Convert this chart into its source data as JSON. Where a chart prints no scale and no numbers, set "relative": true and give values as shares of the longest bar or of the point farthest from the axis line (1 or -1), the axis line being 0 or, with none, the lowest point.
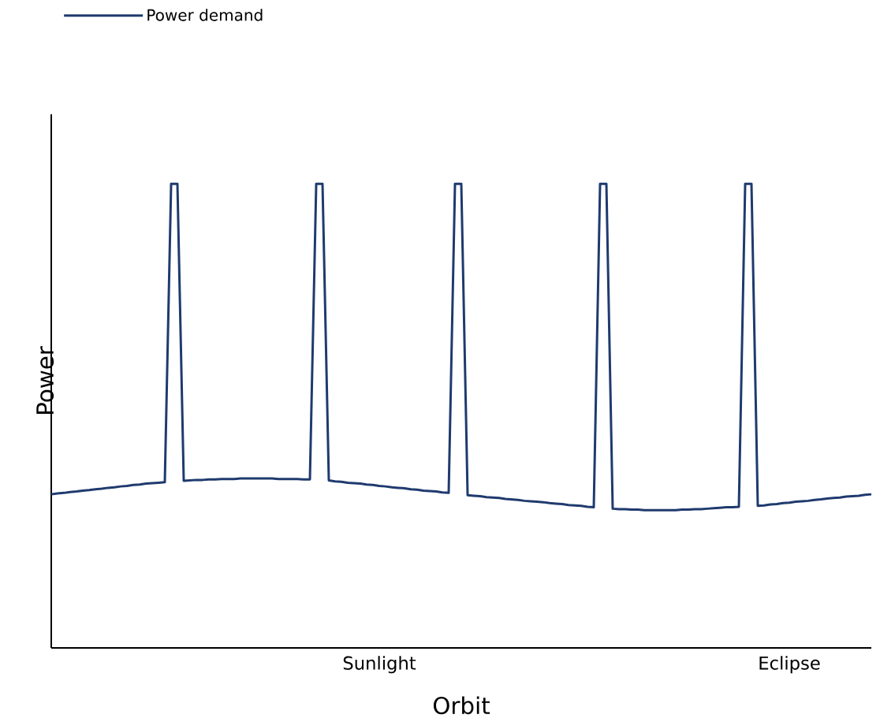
{
  "chart_data": {
    "type": "line",
    "relative": true,
    "xlabel": "Orbit",
    "ylabel": "Power",
    "legend": "top left",
    "categories": [
      null,
      null,
      null,
      null,
      null,
      null,
      null,
      null,
      null,
      null,
      null,
      null,
      null,
      null,
      null,
      null,
      null,
      null,
      null,
      null,
      null,
      null,
      null,
      null,
      null,
      null,
      null,
      null,
      null,
      null,
      null,
      null,
      null,
      null,
      null,
      null,
      null,
      null,
      null,
      null,
      null,
      null,
      null,
      null,
      null,
      null,
      null,
      null,
      null,
      null,
      null,
      null,
      "Sunlight",
      null,
      null,
      null,
      null,
      null,
      null,
      null,
      null,
      null,
      null,
      null,
      null,
      null,
      null,
      null,
      null,
      null,
      null,
      null,
      null,
      null,
      null,
      null,
      null,
      null,
      null,
      null,
      null,
      null,
      null,
      null,
      null,
      null,
      null,
      null,
      null,
      null,
      null,
      null,
      null,
      null,
      null,
      null,
      null,
      null,
      null,
      null,
      null,
      null,
      null,
      null,
      null,
      null,
      null,
      null,
      null,
      null,
      null,
      null,
      null,
      null,
      null,
      null,
      null,
      "Eclipse",
      null,
      null,
      null,
      null,
      null,
      null,
      null,
      null,
      null,
      null,
      null,
      null,
      null
    ],
    "series": [
      {
        "name": "Power demand",
        "color": "#1f3a6e",
        "values": [
          0.331,
          0.333,
          0.334,
          0.336,
          0.337,
          0.339,
          0.34,
          0.342,
          0.343,
          0.345,
          0.346,
          0.348,
          0.349,
          0.351,
          0.352,
          0.354,
          0.355,
          0.356,
          0.357,
          1,
          1,
          0.36,
          0.361,
          0.362,
          0.362,
          0.363,
          0.363,
          0.364,
          0.364,
          0.364,
          0.365,
          0.365,
          0.365,
          0.365,
          0.365,
          0.365,
          0.364,
          0.364,
          0.364,
          0.364,
          0.363,
          0.363,
          1,
          1,
          0.361,
          0.359,
          0.358,
          0.356,
          0.355,
          0.354,
          0.352,
          0.351,
          0.349,
          0.348,
          0.346,
          0.345,
          0.344,
          0.342,
          0.341,
          0.339,
          0.338,
          0.337,
          0.335,
          0.334,
          1,
          1,
          0.329,
          0.328,
          0.327,
          0.325,
          0.324,
          0.323,
          0.321,
          0.32,
          0.319,
          0.317,
          0.316,
          0.315,
          0.314,
          0.312,
          0.311,
          0.31,
          0.308,
          0.307,
          0.306,
          0.304,
          0.303,
          1,
          1,
          0.3,
          0.299,
          0.299,
          0.298,
          0.298,
          0.297,
          0.297,
          0.297,
          0.297,
          0.297,
          0.297,
          0.298,
          0.298,
          0.299,
          0.299,
          0.3,
          0.301,
          0.302,
          0.303,
          0.303,
          0.304,
          1,
          1,
          0.306,
          0.307,
          0.309,
          0.31,
          0.312,
          0.313,
          0.315,
          0.316,
          0.317,
          0.319,
          0.32,
          0.322,
          0.323,
          0.324,
          0.326,
          0.327,
          0.328,
          0.33,
          0.331
        ]
      }
    ]
  }
}
